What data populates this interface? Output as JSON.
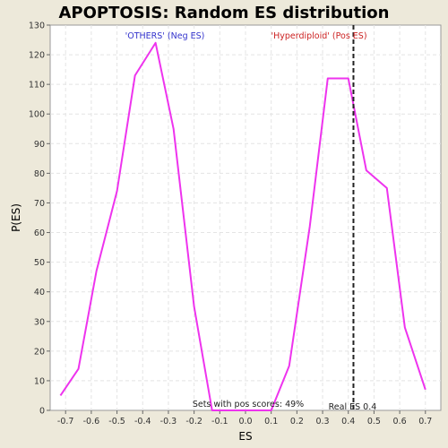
{
  "chart_data": {
    "type": "line",
    "title": "APOPTOSIS: Random ES distribution",
    "xlabel": "ES",
    "ylabel": "P(ES)",
    "xlim": [
      -0.76,
      0.76
    ],
    "ylim": [
      0,
      130
    ],
    "x_ticks": [
      -0.7,
      -0.6,
      -0.5,
      -0.4,
      -0.3,
      -0.2,
      -0.1,
      0.0,
      0.1,
      0.2,
      0.3,
      0.4,
      0.5,
      0.6,
      0.7
    ],
    "y_ticks": [
      0,
      10,
      20,
      30,
      40,
      50,
      60,
      70,
      80,
      90,
      100,
      110,
      120,
      130
    ],
    "grid": true,
    "series": [
      {
        "color": "#ee33ee",
        "x": [
          -0.72,
          -0.65,
          -0.58,
          -0.5,
          -0.43,
          -0.35,
          -0.28,
          -0.2,
          -0.13,
          -0.05,
          0.03,
          0.1,
          0.17,
          0.25,
          0.32,
          0.4,
          0.47,
          0.55,
          0.62,
          0.7
        ],
        "y": [
          5,
          14,
          47,
          74,
          113,
          124,
          95,
          35,
          0,
          0,
          0,
          0,
          15,
          62,
          112,
          112,
          81,
          75,
          28,
          7
        ]
      }
    ],
    "real_es": {
      "value": 0.42,
      "label": "Real ES 0.4",
      "color": "#222222"
    },
    "annotations": [
      {
        "id": "neg",
        "text": "'OTHERS' (Neg ES)",
        "color": "#3333cc"
      },
      {
        "id": "pos",
        "text": "'Hyperdiploid' (Pos ES)",
        "color": "#cc2222"
      },
      {
        "id": "sets",
        "text": "Sets with pos scores: 49%",
        "color": "#222222"
      }
    ]
  }
}
